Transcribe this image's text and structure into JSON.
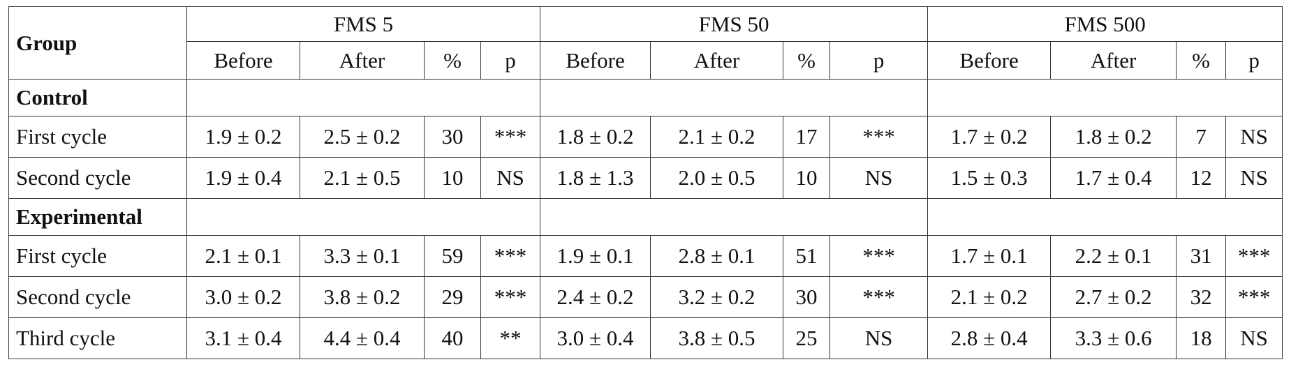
{
  "header": {
    "group": "Group",
    "measures": [
      "FMS 5",
      "FMS 50",
      "FMS 500"
    ],
    "columns": [
      "Before",
      "After",
      "%",
      "p"
    ]
  },
  "sections": [
    {
      "name": "Control",
      "rows": [
        {
          "label": "First cycle",
          "cells": [
            "1.9 ± 0.2",
            "2.5 ± 0.2",
            30,
            "***",
            "1.8 ± 0.2",
            "2.1 ± 0.2",
            17,
            "***",
            "1.7 ± 0.2",
            "1.8 ± 0.2",
            7,
            "NS"
          ]
        },
        {
          "label": "Second cycle",
          "cells": [
            "1.9 ± 0.4",
            "2.1 ± 0.5",
            10,
            "NS",
            "1.8 ± 1.3",
            "2.0 ± 0.5",
            10,
            "NS",
            "1.5 ± 0.3",
            "1.7 ± 0.4",
            12,
            "NS"
          ]
        }
      ]
    },
    {
      "name": "Experimental",
      "rows": [
        {
          "label": "First cycle",
          "cells": [
            "2.1 ± 0.1",
            "3.3 ± 0.1",
            59,
            "***",
            "1.9 ± 0.1",
            "2.8 ± 0.1",
            51,
            "***",
            "1.7 ± 0.1",
            "2.2 ± 0.1",
            31,
            "***"
          ]
        },
        {
          "label": "Second cycle",
          "cells": [
            "3.0 ± 0.2",
            "3.8 ± 0.2",
            29,
            "***",
            "2.4 ± 0.2",
            "3.2 ± 0.2",
            30,
            "***",
            "2.1 ± 0.2",
            "2.7 ± 0.2",
            32,
            "***"
          ]
        },
        {
          "label": "Third cycle",
          "cells": [
            "3.1 ± 0.4",
            "4.4 ± 0.4",
            40,
            "**",
            "3.0 ± 0.4",
            "3.8 ± 0.5",
            25,
            "NS",
            "2.8 ± 0.4",
            "3.3 ± 0.6",
            18,
            "NS"
          ]
        }
      ]
    }
  ]
}
